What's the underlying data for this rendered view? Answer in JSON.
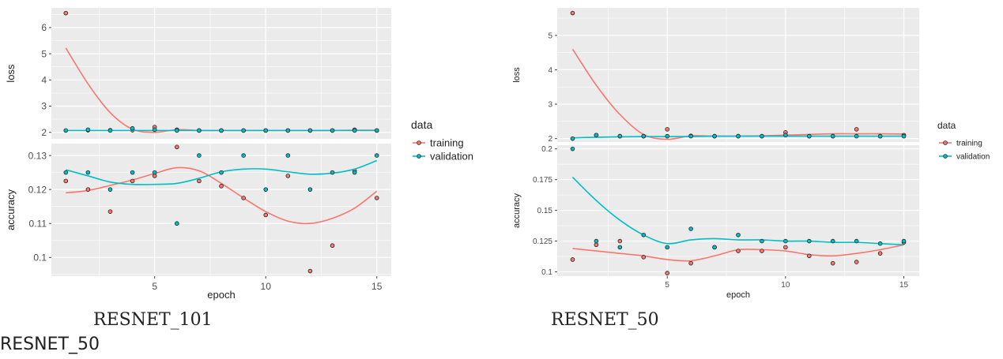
{
  "colors": {
    "training": "#F8766D",
    "validation": "#00BFC4",
    "panel": "#EBEBEB",
    "grid": "#FFFFFF"
  },
  "legend": {
    "title": "data",
    "items": [
      "training",
      "validation"
    ]
  },
  "captions": {
    "left": "RESNET_101",
    "right": "RESNET_50",
    "bottom": "RESNET_50"
  },
  "chart_data": [
    {
      "type": "scatter",
      "title": "RESNET_101",
      "xlabel": "epoch",
      "x": [
        1,
        2,
        3,
        4,
        5,
        6,
        7,
        8,
        9,
        10,
        11,
        12,
        13,
        14,
        15
      ],
      "x_ticks": [
        5,
        10,
        15
      ],
      "panels": [
        {
          "ylabel": "loss",
          "ylim": [
            1.75,
            6.75
          ],
          "y_ticks": [
            2,
            3,
            4,
            5,
            6
          ],
          "series": [
            {
              "name": "training",
              "values": [
                6.55,
                2.08,
                2.08,
                2.08,
                2.2,
                2.1,
                2.07,
                2.07,
                2.07,
                2.07,
                2.07,
                2.07,
                2.07,
                2.1,
                2.07
              ],
              "smooth": [
                5.22,
                3.85,
                2.75,
                2.12,
                2.0,
                2.1,
                2.07,
                2.07,
                2.07,
                2.07,
                2.07,
                2.07,
                2.07,
                2.08,
                2.08
              ]
            },
            {
              "name": "validation",
              "values": [
                2.07,
                2.1,
                2.07,
                2.15,
                2.1,
                2.07,
                2.07,
                2.07,
                2.07,
                2.07,
                2.07,
                2.07,
                2.07,
                2.07,
                2.07
              ],
              "smooth": [
                2.07,
                2.07,
                2.07,
                2.07,
                2.07,
                2.07,
                2.07,
                2.07,
                2.07,
                2.07,
                2.07,
                2.07,
                2.07,
                2.07,
                2.07
              ]
            }
          ]
        },
        {
          "ylabel": "accuracy",
          "ylim": [
            0.0945,
            0.1335
          ],
          "y_ticks": [
            0.1,
            0.11,
            0.12,
            0.13
          ],
          "series": [
            {
              "name": "training",
              "values": [
                0.1225,
                0.12,
                0.1135,
                0.1225,
                0.124,
                0.1325,
                0.1225,
                0.121,
                0.1175,
                0.1125,
                0.124,
                0.096,
                0.1035,
                0.1255,
                0.1175
              ],
              "smooth": [
                0.119,
                0.1197,
                0.1212,
                0.1228,
                0.1247,
                0.1264,
                0.1255,
                0.1218,
                0.1175,
                0.1135,
                0.1107,
                0.11,
                0.1115,
                0.1145,
                0.1195
              ]
            },
            {
              "name": "validation",
              "values": [
                0.125,
                0.125,
                0.12,
                0.125,
                0.125,
                0.11,
                0.13,
                0.125,
                0.13,
                0.12,
                0.13,
                0.12,
                0.125,
                0.125,
                0.13
              ],
              "smooth": [
                0.1258,
                0.124,
                0.1222,
                0.1215,
                0.1215,
                0.1218,
                0.1233,
                0.1252,
                0.126,
                0.126,
                0.1252,
                0.1245,
                0.1248,
                0.126,
                0.1285
              ]
            }
          ]
        }
      ]
    },
    {
      "type": "scatter",
      "title": "RESNET_50",
      "xlabel": "epoch",
      "x": [
        1,
        2,
        3,
        4,
        5,
        6,
        7,
        8,
        9,
        10,
        11,
        12,
        13,
        14,
        15
      ],
      "x_ticks": [
        5,
        10,
        15
      ],
      "panels": [
        {
          "ylabel": "loss",
          "ylim": [
            1.9,
            5.8
          ],
          "y_ticks": [
            2,
            3,
            4,
            5
          ],
          "series": [
            {
              "name": "training",
              "values": [
                5.65,
                2.1,
                2.07,
                2.07,
                2.27,
                2.08,
                2.07,
                2.07,
                2.07,
                2.18,
                2.07,
                2.07,
                2.27,
                2.07,
                2.1
              ],
              "smooth": [
                4.6,
                3.55,
                2.7,
                2.12,
                1.98,
                2.08,
                2.07,
                2.07,
                2.08,
                2.1,
                2.12,
                2.14,
                2.14,
                2.14,
                2.13
              ]
            },
            {
              "name": "validation",
              "values": [
                2.0,
                2.1,
                2.07,
                2.07,
                2.07,
                2.07,
                2.07,
                2.07,
                2.07,
                2.1,
                2.07,
                2.07,
                2.07,
                2.07,
                2.07
              ],
              "smooth": [
                2.02,
                2.04,
                2.05,
                2.06,
                2.06,
                2.06,
                2.07,
                2.07,
                2.07,
                2.07,
                2.07,
                2.07,
                2.07,
                2.07,
                2.07
              ]
            }
          ]
        },
        {
          "ylabel": "accuracy",
          "ylim": [
            0.0965,
            0.203
          ],
          "y_ticks": [
            0.1,
            0.125,
            0.15,
            0.175,
            0.2
          ],
          "series": [
            {
              "name": "training",
              "values": [
                0.11,
                0.122,
                0.125,
                0.112,
                0.099,
                0.107,
                0.12,
                0.117,
                0.117,
                0.12,
                0.113,
                0.107,
                0.108,
                0.115,
                0.124
              ],
              "smooth": [
                0.119,
                0.117,
                0.115,
                0.113,
                0.11,
                0.109,
                0.113,
                0.118,
                0.118,
                0.117,
                0.114,
                0.113,
                0.115,
                0.118,
                0.122
              ]
            },
            {
              "name": "validation",
              "values": [
                0.2,
                0.125,
                0.12,
                0.13,
                0.12,
                0.135,
                0.12,
                0.13,
                0.125,
                0.125,
                0.125,
                0.125,
                0.125,
                0.123,
                0.125
              ],
              "smooth": [
                0.177,
                0.158,
                0.142,
                0.13,
                0.123,
                0.126,
                0.127,
                0.126,
                0.126,
                0.125,
                0.125,
                0.124,
                0.124,
                0.123,
                0.122
              ]
            }
          ]
        }
      ]
    }
  ]
}
